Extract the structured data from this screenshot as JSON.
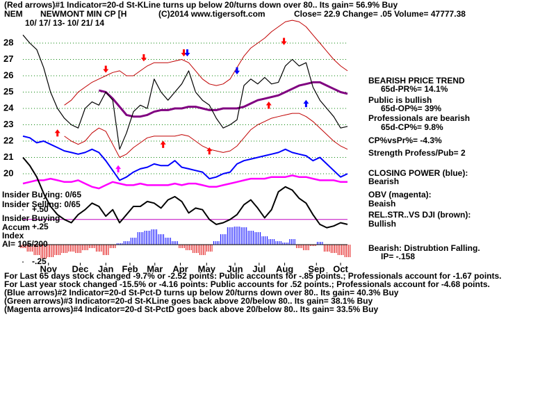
{
  "header": {
    "line1": "(Red arrows)#1 Indicator=20-d St-KLine turns up below 20/turns down over 80.. Its gain= 56.9% Buy",
    "symbol": "NEM",
    "name": "NEWMONT MIN CP [H",
    "copyright": "(C)2014 www.tigersoft.com",
    "quote": "Close=  22.9  Change= .05 Volume= 47777.38",
    "dates": "10/ 17/ 13- 10/ 21/ 14"
  },
  "left_labels": [
    "Insider Buying: 0/65",
    "Insider Selling: 0/65",
    "Insider Buying",
    "Accum",
    "Index",
    "AI= 105/200"
  ],
  "right_panel": [
    {
      "text": "BEARISH PRICE TREND",
      "indent": false
    },
    {
      "text": "65d-PR%= 14.1%",
      "indent": true
    },
    {
      "text": "Public is bullish",
      "indent": false
    },
    {
      "text": "65d-OP%= 39%",
      "indent": true
    },
    {
      "text": "Professionals are bearish",
      "indent": false
    },
    {
      "text": "65d-CP%= 9.8%",
      "indent": true
    },
    {
      "text": "CP%vsPr%= -4.3%",
      "indent": false
    },
    {
      "text": "Strength Profess/Pub= 2",
      "indent": false
    },
    {
      "text": "CLOSING POWER (blue):",
      "indent": false
    },
    {
      "text": "Bearish",
      "indent": false
    },
    {
      "text": "OBV (magenta):",
      "indent": false
    },
    {
      "text": "Beaish",
      "indent": false
    },
    {
      "text": "REL.STR..VS DJI (brown):",
      "indent": false
    },
    {
      "text": "Bullish",
      "indent": false
    },
    {
      "text": "Bearish: Distrubtion Falling.",
      "indent": false
    },
    {
      "text": "IP= -.158",
      "indent": true
    }
  ],
  "footer": [
    "For Last 65 days stock changed -9.7% or -2.52 points:  Public accounts for -.85 points.;  Professionals account for -1.67 points.",
    "For Last year stock changed -15.5% or -4.16 points:  Public accounts for  .52 points.;  Professionals account for -4.68 points.",
    "(Blue arrows)#2 Indicator=20-d St-Pct-D turns up below 20/turns down over 80.. Its gain= 40.3% Buy",
    "(Green arrows)#3 Indicator=20-d St-KLine goes back above 20/below 80.. Its gain= 38.1% Buy",
    "(Magenta arrows)#4 Indicator=20-d St-PctD goes back above 20/below 80.. Its gain= 33.5% Buy"
  ],
  "chart_data": [
    {
      "type": "line",
      "xlim": [
        0,
        47
      ],
      "xticks": [
        {
          "value": 3.7,
          "label": "Nov"
        },
        {
          "value": 8.3,
          "label": "Dec"
        },
        {
          "value": 12,
          "label": "Jan"
        },
        {
          "value": 15.5,
          "label": "Feb"
        },
        {
          "value": 19.1,
          "label": "Mar"
        },
        {
          "value": 22.8,
          "label": "Apr"
        },
        {
          "value": 26.6,
          "label": "May"
        },
        {
          "value": 30.7,
          "label": "Jun"
        },
        {
          "value": 34.2,
          "label": "Jul"
        },
        {
          "value": 37.9,
          "label": "Aug"
        },
        {
          "value": 42.5,
          "label": "Sep"
        },
        {
          "value": 46,
          "label": "Oct"
        }
      ],
      "ylim": [
        14.5,
        29.9
      ],
      "yticks": [
        20,
        21,
        22,
        23,
        24,
        25,
        26,
        27,
        28
      ],
      "grid": true,
      "grid_color": "#008000",
      "ref_line": 17.2,
      "ref_color": "#c000c0",
      "series": [
        {
          "color": "#0000ff",
          "width": 2,
          "values": [
            22.3,
            22.2,
            21.9,
            22,
            21.8,
            21.6,
            21.4,
            21.3,
            21.2,
            21.3,
            21.5,
            21.3,
            20.8,
            20.2,
            19.6,
            19.8,
            20.1,
            20.3,
            20.4,
            20.6,
            20.5,
            20.5,
            20.8,
            20.4,
            20.3,
            20.2,
            20.1,
            19.7,
            19.8,
            20,
            20.1,
            20.6,
            20.8,
            20.9,
            21,
            21.1,
            21.2,
            21.3,
            21.5,
            21.3,
            21.2,
            21.1,
            20.8,
            21,
            20.6,
            20.2,
            19.8,
            20
          ]
        },
        {
          "color": "#ff00ff",
          "width": 2.5,
          "values": [
            19.4,
            19.5,
            19.6,
            19.6,
            19.7,
            19.6,
            19.5,
            19.5,
            19.6,
            19.4,
            19.2,
            19.1,
            19.3,
            19.5,
            19.4,
            19.3,
            19.3,
            19.4,
            19.3,
            19.3,
            19.3,
            19.3,
            19.4,
            19.3,
            19.4,
            19.4,
            19.3,
            19.2,
            19.2,
            19.3,
            19.4,
            19.5,
            19.6,
            19.7,
            19.7,
            19.7,
            19.8,
            19.8,
            19.8,
            19.9,
            19.8,
            19.8,
            19.7,
            19.6,
            19.6,
            19.6,
            19.5,
            19.5
          ]
        },
        {
          "color": "#000000",
          "width": 2,
          "values": [
            21,
            20.5,
            19.8,
            18.8,
            18,
            17.5,
            17.2,
            17,
            17.5,
            17.8,
            18.2,
            18,
            17.4,
            17.8,
            17,
            17.5,
            18,
            18,
            18.3,
            18.2,
            17.9,
            18.4,
            18.6,
            18.3,
            17.6,
            17.9,
            17.8,
            17.2,
            16.9,
            17,
            17.2,
            17.5,
            18.1,
            18.4,
            17.9,
            17.3,
            17.8,
            18.9,
            19.2,
            19,
            18.5,
            18.2,
            17.5,
            16.9,
            16.7,
            16.8,
            17,
            16.9
          ]
        },
        {
          "color": "#c00000",
          "width": 1,
          "values": [
            null,
            null,
            null,
            null,
            null,
            null,
            24.2,
            24.5,
            25,
            25.3,
            25.6,
            25.8,
            26,
            26.2,
            26.3,
            26,
            26,
            26.3,
            26.6,
            26.8,
            26.8,
            26.8,
            26.9,
            27,
            26.8,
            26.3,
            25.8,
            25.5,
            25.4,
            25.5,
            25.8,
            26.5,
            27.2,
            27.7,
            28,
            28.3,
            28.7,
            29,
            29.3,
            29.4,
            29.3,
            29,
            28.5,
            28,
            27.5,
            27,
            26.6,
            26.3
          ]
        },
        {
          "color": "#c00000",
          "width": 1,
          "values": [
            null,
            null,
            null,
            null,
            null,
            null,
            22.3,
            22,
            21.8,
            22,
            22.5,
            22.8,
            22.6,
            21.8,
            21,
            21.2,
            21.6,
            21.9,
            22.2,
            22.3,
            22.3,
            22.3,
            22.3,
            22.4,
            22.3,
            22,
            21.7,
            21.5,
            21.4,
            21.3,
            21.4,
            21.7,
            22.2,
            22.7,
            23,
            23.2,
            23.4,
            23.5,
            23.6,
            23.7,
            23.7,
            23.5,
            23.2,
            22.8,
            22.4,
            22,
            21.7,
            21.5
          ]
        },
        {
          "color": "#800080",
          "width": 3,
          "values": [
            null,
            null,
            null,
            null,
            null,
            null,
            null,
            null,
            null,
            null,
            null,
            25.1,
            25,
            24.6,
            24.1,
            23.6,
            23.5,
            23.5,
            23.6,
            23.8,
            23.9,
            23.9,
            24,
            24,
            24.1,
            24.1,
            24,
            23.9,
            23.9,
            24,
            24,
            24,
            24.1,
            24.3,
            24.5,
            24.6,
            24.7,
            24.8,
            25,
            25.2,
            25.4,
            25.5,
            25.6,
            25.6,
            25.4,
            25.2,
            25,
            24.9
          ]
        },
        {
          "color": "#000000",
          "width": 1.2,
          "values": [
            28.5,
            28,
            27.6,
            26.5,
            25,
            24,
            23.4,
            23,
            22.8,
            24,
            24.4,
            24.2,
            25,
            24.5,
            21.5,
            22.5,
            23.8,
            24.2,
            24,
            25.8,
            25,
            24.5,
            25,
            25.5,
            26.3,
            25,
            24.5,
            24.2,
            23.4,
            22.8,
            23,
            23.3,
            25.4,
            25.8,
            25.5,
            25.9,
            25.5,
            25.6,
            26.6,
            27,
            26.6,
            26.8,
            25.3,
            24.5,
            24,
            23.5,
            22.8,
            22.9
          ]
        }
      ],
      "signals": [
        {
          "x": 12,
          "y": 26.3,
          "color": "#ff0000",
          "dir": "down"
        },
        {
          "x": 17.5,
          "y": 27.0,
          "color": "#ff0000",
          "dir": "down"
        },
        {
          "x": 23.3,
          "y": 27.3,
          "color": "#ff0000",
          "dir": "down"
        },
        {
          "x": 23.8,
          "y": 27.3,
          "color": "#0000ff",
          "dir": "down"
        },
        {
          "x": 31,
          "y": 26.2,
          "color": "#0000ff",
          "dir": "down"
        },
        {
          "x": 37.8,
          "y": 28.0,
          "color": "#ff0000",
          "dir": "down"
        },
        {
          "x": 5,
          "y": 22.6,
          "color": "#ff0000",
          "dir": "up"
        },
        {
          "x": 20.3,
          "y": 21.9,
          "color": "#ff0000",
          "dir": "up"
        },
        {
          "x": 27,
          "y": 21.5,
          "color": "#ff0000",
          "dir": "up"
        },
        {
          "x": 35.6,
          "y": 24.3,
          "color": "#ff0000",
          "dir": "up"
        },
        {
          "x": 41,
          "y": 24.4,
          "color": "#0000ff",
          "dir": "up"
        },
        {
          "x": 13.8,
          "y": 20.4,
          "color": "#ff00ff",
          "dir": "up"
        }
      ]
    },
    {
      "type": "bar",
      "xlim": [
        0,
        47
      ],
      "ylim": [
        -0.28,
        0.52
      ],
      "yticks": [
        {
          "value": 0.5,
          "label": "+.50"
        },
        {
          "value": 0.25,
          "label": "+.25"
        },
        {
          "value": -0.25,
          "label": "-.25"
        }
      ],
      "pos_color": "#0000ff",
      "neg_color": "#e00000",
      "values": [
        -0.05,
        -0.1,
        -0.15,
        -0.2,
        -0.18,
        -0.15,
        -0.12,
        -0.1,
        -0.12,
        -0.08,
        -0.05,
        -0.1,
        -0.15,
        -0.05,
        0.02,
        0.05,
        0.1,
        0.18,
        0.2,
        0.22,
        0.15,
        0.1,
        0.05,
        -0.05,
        -0.08,
        -0.12,
        -0.15,
        -0.1,
        0.05,
        0.15,
        0.25,
        0.26,
        0.25,
        0.2,
        0.18,
        0.12,
        0.08,
        0.05,
        0.03,
        0.08,
        -0.05,
        -0.08,
        -0.02,
        0.04,
        -0.1,
        -0.12,
        -0.15,
        -0.18
      ]
    }
  ]
}
